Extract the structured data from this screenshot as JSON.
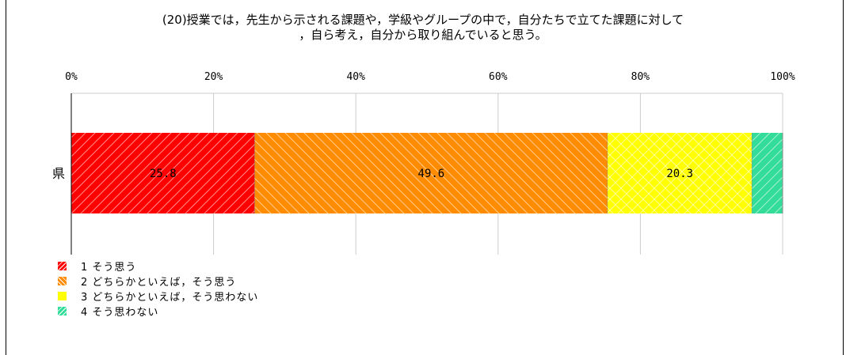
{
  "chart_data": {
    "type": "bar",
    "orientation": "horizontal-stacked-100",
    "title_line1": "(20)授業では，先生から示される課題や，学級やグループの中で，自分たちで立てた課題に対して",
    "title_line2": "，自ら考え，自分から取り組んでいると思う。",
    "categories": [
      "県"
    ],
    "xlim": [
      0,
      100
    ],
    "x_ticks": [
      "0%",
      "20%",
      "40%",
      "60%",
      "80%",
      "100%"
    ],
    "grid": true,
    "legend_position": "bottom-left",
    "series": [
      {
        "name": "1 そう思う",
        "values": [
          25.8
        ],
        "label": "25.8",
        "color": "#ff0000",
        "hatch": "diagonal-right"
      },
      {
        "name": "2 どちらかといえば，そう思う",
        "values": [
          49.6
        ],
        "label": "49.6",
        "color": "#ff8c00",
        "hatch": "diagonal-left"
      },
      {
        "name": "3 どちらかといえば，そう思わない",
        "values": [
          20.3
        ],
        "label": "20.3",
        "color": "#ffff00",
        "hatch": "crosshatch"
      },
      {
        "name": "4 そう思わない",
        "values": [
          4.3
        ],
        "label": "",
        "color": "#33dd99",
        "hatch": "diagonal-right"
      }
    ]
  }
}
